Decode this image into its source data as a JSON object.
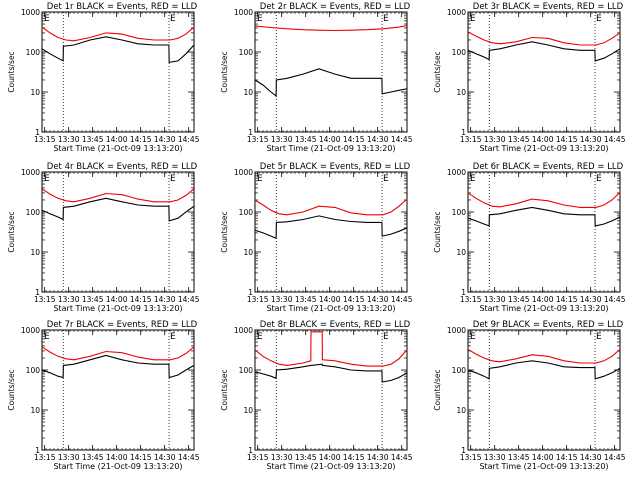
{
  "colors": {
    "events": "#000000",
    "lld": "#ee0000",
    "axis": "#000000"
  },
  "shared": {
    "xlabel": "Start Time (21-Oct-09 13:13:20)",
    "ylabel": "Counts/sec",
    "x_ticks": [
      "13:15",
      "13:30",
      "13:45",
      "14:00",
      "14:15",
      "14:30",
      "14:45"
    ],
    "y_ticks": [
      "1",
      "10",
      "100",
      "1000"
    ],
    "marker": "E",
    "vlines_minutes": [
      13.3,
      79.4
    ],
    "ylim": [
      1,
      1000
    ],
    "y_scale": "log",
    "x_range_minutes": [
      0,
      95
    ]
  },
  "chart_data": [
    {
      "type": "line",
      "title": "Det 1r BLACK = Events, RED = LLD",
      "series": [
        {
          "name": "Events",
          "color": "#000000",
          "x": [
            0,
            5,
            10,
            13.2,
            13.4,
            20,
            30,
            40,
            50,
            60,
            70,
            79.3,
            79.5,
            85,
            90,
            95
          ],
          "values": [
            120,
            90,
            70,
            60,
            140,
            150,
            200,
            240,
            200,
            160,
            150,
            150,
            55,
            60,
            90,
            150
          ]
        },
        {
          "name": "LLD",
          "color": "#ee0000",
          "x": [
            0,
            5,
            10,
            15,
            20,
            30,
            40,
            50,
            60,
            70,
            80,
            85,
            90,
            95
          ],
          "values": [
            420,
            300,
            230,
            200,
            190,
            230,
            300,
            280,
            220,
            200,
            200,
            220,
            280,
            420
          ]
        }
      ]
    },
    {
      "type": "line",
      "title": "Det 2r BLACK = Events, RED = LLD",
      "series": [
        {
          "name": "Events",
          "color": "#000000",
          "x": [
            0,
            5,
            10,
            13.2,
            13.4,
            20,
            30,
            40,
            50,
            60,
            70,
            79.3,
            79.5,
            85,
            90,
            95
          ],
          "values": [
            20,
            15,
            10,
            8,
            20,
            22,
            28,
            38,
            28,
            22,
            22,
            22,
            9,
            10,
            11,
            12
          ]
        },
        {
          "name": "LLD",
          "color": "#ee0000",
          "x": [
            0,
            10,
            20,
            30,
            40,
            50,
            60,
            70,
            80,
            90,
            95
          ],
          "values": [
            450,
            410,
            380,
            360,
            350,
            345,
            350,
            360,
            380,
            420,
            460
          ]
        }
      ]
    },
    {
      "type": "line",
      "title": "Det 3r BLACK = Events, RED = LLD",
      "series": [
        {
          "name": "Events",
          "color": "#000000",
          "x": [
            0,
            5,
            10,
            13.2,
            13.4,
            20,
            30,
            40,
            50,
            60,
            70,
            79.3,
            79.5,
            85,
            90,
            95
          ],
          "values": [
            110,
            90,
            75,
            65,
            110,
            120,
            150,
            180,
            150,
            120,
            110,
            110,
            60,
            70,
            90,
            120
          ]
        },
        {
          "name": "LLD",
          "color": "#ee0000",
          "x": [
            0,
            5,
            10,
            15,
            20,
            30,
            40,
            50,
            60,
            70,
            80,
            85,
            90,
            95
          ],
          "values": [
            320,
            250,
            200,
            170,
            160,
            180,
            230,
            220,
            170,
            150,
            150,
            170,
            220,
            300
          ]
        }
      ]
    },
    {
      "type": "line",
      "title": "Det 4r BLACK = Events, RED = LLD",
      "series": [
        {
          "name": "Events",
          "color": "#000000",
          "x": [
            0,
            5,
            10,
            13.2,
            13.4,
            20,
            30,
            40,
            50,
            60,
            70,
            79.3,
            79.5,
            85,
            90,
            95
          ],
          "values": [
            110,
            90,
            75,
            65,
            130,
            140,
            180,
            220,
            180,
            150,
            140,
            140,
            60,
            70,
            100,
            140
          ]
        },
        {
          "name": "LLD",
          "color": "#ee0000",
          "x": [
            0,
            5,
            10,
            15,
            20,
            30,
            40,
            50,
            60,
            70,
            80,
            85,
            90,
            95
          ],
          "values": [
            380,
            280,
            220,
            190,
            180,
            220,
            290,
            270,
            210,
            180,
            180,
            200,
            260,
            380
          ]
        }
      ]
    },
    {
      "type": "line",
      "title": "Det 5r BLACK = Events, RED = LLD",
      "series": [
        {
          "name": "Events",
          "color": "#000000",
          "x": [
            0,
            5,
            10,
            13.2,
            13.4,
            20,
            30,
            40,
            50,
            60,
            70,
            79.3,
            79.5,
            85,
            90,
            95
          ],
          "values": [
            35,
            30,
            25,
            22,
            55,
            57,
            65,
            80,
            65,
            58,
            55,
            55,
            25,
            28,
            33,
            40
          ]
        },
        {
          "name": "LLD",
          "color": "#ee0000",
          "x": [
            0,
            5,
            10,
            15,
            20,
            30,
            40,
            50,
            60,
            70,
            80,
            85,
            90,
            95
          ],
          "values": [
            200,
            150,
            110,
            90,
            85,
            100,
            140,
            130,
            95,
            85,
            85,
            100,
            140,
            210
          ]
        }
      ]
    },
    {
      "type": "line",
      "title": "Det 6r BLACK = Events, RED = LLD",
      "series": [
        {
          "name": "Events",
          "color": "#000000",
          "x": [
            0,
            5,
            10,
            13.2,
            13.4,
            20,
            30,
            40,
            50,
            60,
            70,
            79.3,
            79.5,
            85,
            90,
            95
          ],
          "values": [
            70,
            60,
            50,
            45,
            85,
            90,
            110,
            130,
            110,
            90,
            85,
            85,
            45,
            50,
            60,
            75
          ]
        },
        {
          "name": "LLD",
          "color": "#ee0000",
          "x": [
            0,
            5,
            10,
            15,
            20,
            30,
            40,
            50,
            60,
            70,
            80,
            85,
            90,
            95
          ],
          "values": [
            300,
            220,
            170,
            140,
            135,
            160,
            210,
            190,
            150,
            130,
            130,
            150,
            200,
            310
          ]
        }
      ]
    },
    {
      "type": "line",
      "title": "Det 7r BLACK = Events, RED = LLD",
      "series": [
        {
          "name": "Events",
          "color": "#000000",
          "x": [
            0,
            5,
            10,
            13.2,
            13.4,
            20,
            30,
            40,
            50,
            60,
            70,
            79.3,
            79.5,
            85,
            90,
            95
          ],
          "values": [
            100,
            85,
            70,
            65,
            130,
            140,
            180,
            230,
            180,
            150,
            140,
            140,
            65,
            75,
            100,
            130
          ]
        },
        {
          "name": "LLD",
          "color": "#ee0000",
          "x": [
            0,
            5,
            10,
            15,
            20,
            30,
            40,
            50,
            60,
            70,
            80,
            85,
            90,
            95
          ],
          "values": [
            380,
            280,
            220,
            190,
            180,
            220,
            290,
            270,
            210,
            180,
            180,
            200,
            260,
            380
          ]
        }
      ]
    },
    {
      "type": "line",
      "title": "Det 8r BLACK = Events, RED = LLD",
      "series": [
        {
          "name": "Events",
          "color": "#000000",
          "x": [
            0,
            5,
            10,
            13.2,
            13.4,
            20,
            30,
            34.9,
            35,
            42,
            42.1,
            50,
            60,
            70,
            79.3,
            79.5,
            85,
            90,
            95
          ],
          "values": [
            90,
            80,
            70,
            62,
            100,
            105,
            120,
            130,
            130,
            140,
            130,
            120,
            100,
            95,
            95,
            50,
            55,
            65,
            85
          ]
        },
        {
          "name": "LLD",
          "color": "#ee0000",
          "x": [
            0,
            5,
            10,
            15,
            20,
            30,
            34.9,
            35,
            42,
            42.1,
            50,
            60,
            70,
            80,
            85,
            90,
            95
          ],
          "values": [
            320,
            220,
            170,
            140,
            130,
            150,
            170,
            900,
            900,
            180,
            170,
            140,
            125,
            125,
            140,
            190,
            320
          ]
        }
      ]
    },
    {
      "type": "line",
      "title": "Det 9r BLACK = Events, RED = LLD",
      "series": [
        {
          "name": "Events",
          "color": "#000000",
          "x": [
            0,
            5,
            10,
            13.2,
            13.4,
            20,
            30,
            40,
            50,
            60,
            70,
            79.3,
            79.5,
            85,
            90,
            95
          ],
          "values": [
            100,
            85,
            70,
            60,
            110,
            120,
            150,
            170,
            150,
            120,
            115,
            115,
            60,
            70,
            85,
            110
          ]
        },
        {
          "name": "LLD",
          "color": "#ee0000",
          "x": [
            0,
            5,
            10,
            15,
            20,
            30,
            40,
            50,
            60,
            70,
            80,
            85,
            90,
            95
          ],
          "values": [
            330,
            250,
            200,
            170,
            160,
            190,
            240,
            220,
            170,
            150,
            150,
            170,
            220,
            330
          ]
        }
      ]
    }
  ]
}
